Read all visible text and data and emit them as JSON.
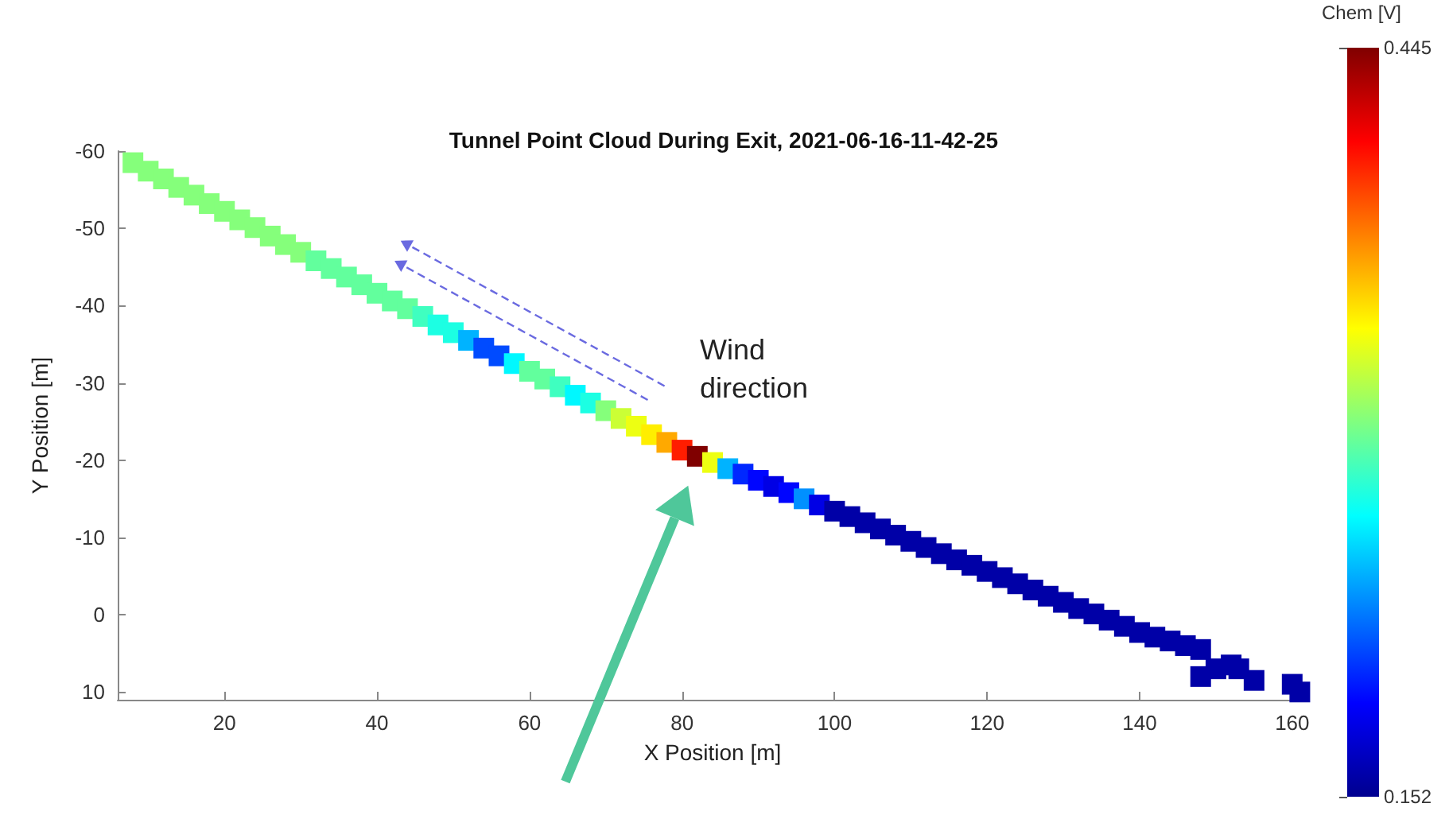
{
  "chart_data": {
    "type": "scatter",
    "title": "Tunnel Point Cloud During Exit, 2021-06-16-11-42-25",
    "xlabel": "X Position [m]",
    "ylabel": "Y Position [m]",
    "clabel": "Chem [V]",
    "annotations": [
      "Wind direction"
    ],
    "x": [
      8,
      10,
      12,
      14,
      16,
      18,
      20,
      22,
      24,
      26,
      28,
      30,
      32,
      34,
      36,
      38,
      40,
      42,
      44,
      46,
      48,
      50,
      52,
      54,
      56,
      58,
      60,
      62,
      64,
      66,
      68,
      70,
      72,
      74,
      76,
      78,
      80,
      82,
      84,
      86,
      88,
      90,
      92,
      94,
      96,
      98,
      100,
      102,
      104,
      106,
      108,
      110,
      112,
      114,
      116,
      118,
      120,
      122,
      124,
      126,
      128,
      130,
      132,
      134,
      136,
      138,
      140,
      142,
      144,
      146,
      148,
      148,
      150,
      152,
      153,
      155,
      160,
      161
    ],
    "values": [
      -58.5,
      -57.4,
      -56.4,
      -55.3,
      -54.3,
      -53.2,
      -52.2,
      -51.1,
      -50.1,
      -49.0,
      -47.9,
      -46.9,
      -45.8,
      -44.8,
      -43.7,
      -42.7,
      -41.6,
      -40.6,
      -39.6,
      -38.6,
      -37.5,
      -36.5,
      -35.5,
      -34.5,
      -33.5,
      -32.5,
      -31.5,
      -30.5,
      -29.5,
      -28.4,
      -27.4,
      -26.4,
      -25.4,
      -24.4,
      -23.3,
      -22.3,
      -21.3,
      -20.5,
      -19.7,
      -18.9,
      -18.2,
      -17.4,
      -16.6,
      -15.8,
      -15.0,
      -14.2,
      -13.4,
      -12.7,
      -11.9,
      -11.1,
      -10.3,
      -9.5,
      -8.7,
      -7.9,
      -7.1,
      -6.4,
      -5.6,
      -4.8,
      -4.0,
      -3.2,
      -2.4,
      -1.6,
      -0.8,
      -0.1,
      0.7,
      1.5,
      2.3,
      2.9,
      3.4,
      4.0,
      4.5,
      8,
      7,
      6.5,
      7,
      8.5,
      9,
      10
    ],
    "cvalues": [
      0.3,
      0.3,
      0.3,
      0.3,
      0.3,
      0.3,
      0.3,
      0.3,
      0.3,
      0.3,
      0.3,
      0.3,
      0.29,
      0.29,
      0.29,
      0.29,
      0.29,
      0.29,
      0.29,
      0.28,
      0.27,
      0.27,
      0.24,
      0.21,
      0.21,
      0.26,
      0.29,
      0.29,
      0.28,
      0.26,
      0.27,
      0.3,
      0.32,
      0.33,
      0.34,
      0.36,
      0.4,
      0.445,
      0.33,
      0.24,
      0.2,
      0.19,
      0.18,
      0.19,
      0.23,
      0.18,
      0.16,
      0.16,
      0.16,
      0.16,
      0.16,
      0.16,
      0.16,
      0.16,
      0.16,
      0.16,
      0.16,
      0.16,
      0.16,
      0.16,
      0.16,
      0.16,
      0.16,
      0.16,
      0.16,
      0.16,
      0.16,
      0.16,
      0.16,
      0.16,
      0.16,
      0.16,
      0.16,
      0.16,
      0.16,
      0.16,
      0.16,
      0.16
    ],
    "clim": [
      0.152,
      0.445
    ],
    "cticks": [
      0.152,
      0.445
    ],
    "xlim": [
      6,
      162
    ],
    "xticks": [
      20,
      40,
      60,
      80,
      100,
      120,
      140,
      160
    ],
    "ylim": [
      11,
      -60
    ],
    "yticks": [
      -60,
      -50,
      -40,
      -30,
      -20,
      -10,
      0,
      10
    ],
    "marker": "square",
    "grid": false
  }
}
